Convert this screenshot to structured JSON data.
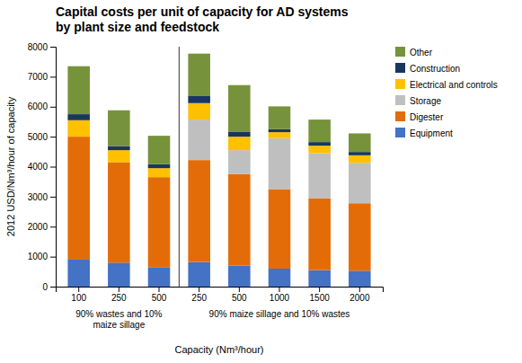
{
  "chart_data": {
    "type": "bar",
    "stacked": true,
    "title": "Capital costs per unit of capacity for AD systems\nby plant size and feedstock",
    "ylabel": "2012 USD/Nm³/hour of capacity",
    "xlabel": "Capacity (Nm³/hour)",
    "annotations": [
      "90% wastes and 10%\nmaize sillage",
      "90% maize sillage and 10% wastes"
    ],
    "categories": [
      "100",
      "250",
      "500",
      "250",
      "500",
      "1000",
      "1500",
      "2000"
    ],
    "series": [
      {
        "name": "Equipment",
        "color": "#4472C4",
        "values": [
          900,
          800,
          650,
          820,
          700,
          600,
          550,
          530
        ]
      },
      {
        "name": "Digester",
        "color": "#E36C09",
        "values": [
          4100,
          3350,
          3000,
          3400,
          3050,
          2650,
          2400,
          2250
        ]
      },
      {
        "name": "Storage",
        "color": "#BFBFBF",
        "values": [
          0,
          0,
          0,
          1350,
          800,
          1700,
          1500,
          1350
        ]
      },
      {
        "name": "Electrical and controls",
        "color": "#FFC000",
        "values": [
          550,
          400,
          300,
          550,
          450,
          200,
          250,
          250
        ]
      },
      {
        "name": "Construction",
        "color": "#17375E",
        "values": [
          200,
          130,
          130,
          250,
          170,
          100,
          120,
          110
        ]
      },
      {
        "name": "Other",
        "color": "#76933C",
        "values": [
          1600,
          1200,
          950,
          1400,
          1550,
          760,
          750,
          620
        ]
      }
    ],
    "ylim": [
      0,
      8000
    ],
    "yticks": [
      0,
      1000,
      2000,
      3000,
      4000,
      5000,
      6000,
      7000,
      8000
    ],
    "grid": false,
    "legend": "right"
  }
}
